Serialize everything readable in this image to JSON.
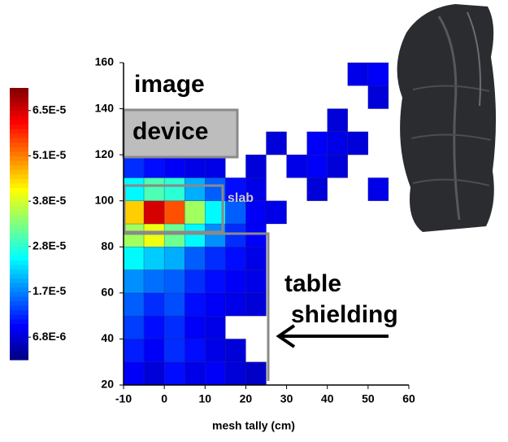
{
  "chart_data": {
    "type": "contour",
    "xlabel": "mesh tally (cm)",
    "xlim": [
      -10,
      60
    ],
    "xticks": [
      -10,
      0,
      10,
      20,
      30,
      40,
      50,
      60
    ],
    "ylim": [
      20,
      160
    ],
    "yticks": [
      20,
      40,
      60,
      80,
      100,
      120,
      140,
      160
    ],
    "x_edges": [
      -10,
      -5,
      0,
      5,
      10,
      15,
      20,
      25,
      30,
      35,
      40,
      45,
      50,
      55,
      60
    ],
    "y_edges": [
      20,
      30,
      40,
      50,
      60,
      70,
      80,
      90,
      100,
      110,
      120,
      130,
      140,
      150,
      160
    ],
    "z": [
      [
        9e-06,
        7e-06,
        1e-05,
        8e-06,
        9e-06,
        7e-06,
        6e-06,
        null,
        null,
        null,
        null,
        null,
        null,
        null
      ],
      [
        1.1e-05,
        9e-06,
        1.2e-05,
        1e-05,
        8e-06,
        7e-06,
        null,
        null,
        null,
        null,
        null,
        null,
        null,
        null
      ],
      [
        1.3e-05,
        1e-05,
        1.2e-05,
        9e-06,
        8e-06,
        null,
        null,
        null,
        null,
        null,
        null,
        null,
        null,
        null
      ],
      [
        1.5e-05,
        1.2e-05,
        1.4e-05,
        1e-05,
        9e-06,
        8e-06,
        7e-06,
        null,
        null,
        null,
        null,
        null,
        null,
        null
      ],
      [
        1.8e-05,
        1.6e-05,
        1.5e-05,
        1.2e-05,
        1e-05,
        9e-06,
        8e-06,
        null,
        null,
        null,
        null,
        null,
        null,
        null
      ],
      [
        2.5e-05,
        2.2e-05,
        2e-05,
        1.5e-05,
        1.2e-05,
        1e-05,
        8e-06,
        null,
        null,
        null,
        null,
        null,
        null,
        null
      ],
      [
        3.5e-05,
        4e-05,
        3.2e-05,
        2.5e-05,
        1.8e-05,
        1.2e-05,
        9e-06,
        null,
        null,
        null,
        null,
        null,
        null,
        null
      ],
      [
        4.5e-05,
        6.5e-05,
        5.5e-05,
        3.5e-05,
        2.5e-05,
        1.5e-05,
        9e-06,
        8e-06,
        null,
        null,
        null,
        null,
        null,
        null
      ],
      [
        2.5e-05,
        3e-05,
        2.8e-05,
        2e-05,
        1.5e-05,
        1e-05,
        8e-06,
        null,
        null,
        7e-06,
        null,
        null,
        8e-06,
        null
      ],
      [
        1.2e-05,
        1e-05,
        9e-06,
        8e-06,
        8e-06,
        null,
        7e-06,
        null,
        8e-06,
        9e-06,
        7e-06,
        null,
        null,
        null
      ],
      [
        null,
        null,
        null,
        null,
        null,
        null,
        null,
        7e-06,
        null,
        9e-06,
        8e-06,
        7e-06,
        null,
        null
      ],
      [
        null,
        null,
        null,
        null,
        null,
        null,
        null,
        null,
        null,
        null,
        7e-06,
        null,
        null,
        null
      ],
      [
        null,
        null,
        null,
        null,
        null,
        null,
        null,
        null,
        null,
        null,
        null,
        null,
        7e-06,
        null
      ],
      [
        null,
        null,
        null,
        null,
        null,
        null,
        null,
        null,
        null,
        null,
        null,
        8e-06,
        9e-06,
        null
      ]
    ],
    "colorbar_ticks": [
      {
        "value": 6.8e-06,
        "label": "6.8E-6"
      },
      {
        "value": 1.7e-05,
        "label": "1.7E-5"
      },
      {
        "value": 2.8e-05,
        "label": "2.8E-5"
      },
      {
        "value": 3.8e-05,
        "label": "3.8E-5"
      },
      {
        "value": 5.1e-05,
        "label": "5.1E-5"
      },
      {
        "value": 6.5e-05,
        "label": "6.5E-5"
      }
    ],
    "annotations": [
      "image",
      "device",
      "slab",
      "table",
      "shielding"
    ]
  }
}
